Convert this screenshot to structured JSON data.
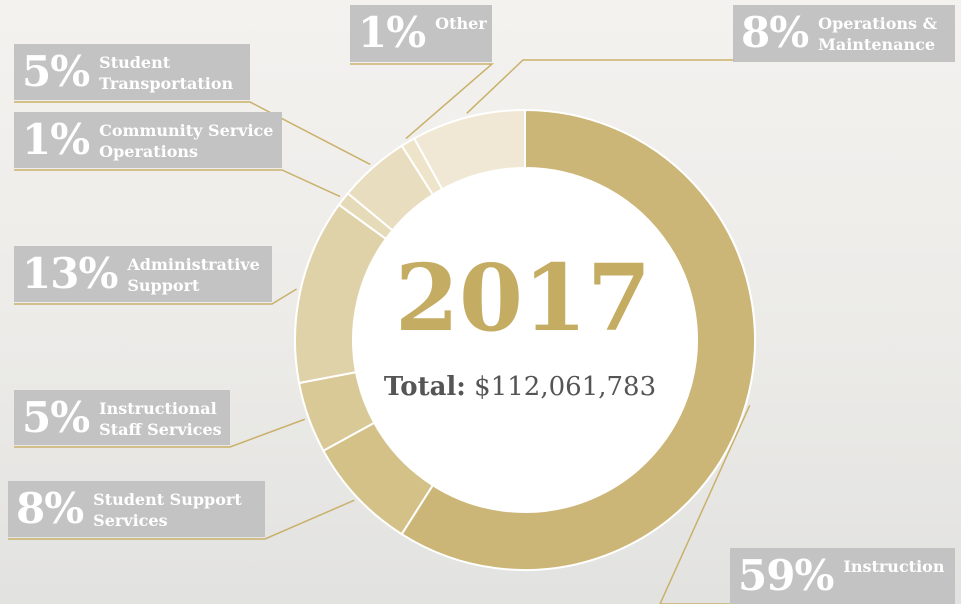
{
  "chart_data": {
    "type": "donut",
    "title": "2017",
    "total_label": "Total:",
    "total_value": "$112,061,783",
    "categories": [
      "Instruction",
      "Student Support Services",
      "Instructional Staff Services",
      "Administrative Support",
      "Community Service Operations",
      "Student Transportation",
      "Other",
      "Operations & Maintenance"
    ],
    "values": [
      59,
      8,
      5,
      13,
      1,
      5,
      1,
      8
    ],
    "value_labels": [
      "59%",
      "8%",
      "5%",
      "13%",
      "1%",
      "5%",
      "1%",
      "8%"
    ],
    "colors": [
      "#cbb677",
      "#d3c188",
      "#d9c996",
      "#e0d2a8",
      "#e6dbb8",
      "#e8ddbe",
      "#ede4ca",
      "#f0e8d4"
    ]
  }
}
